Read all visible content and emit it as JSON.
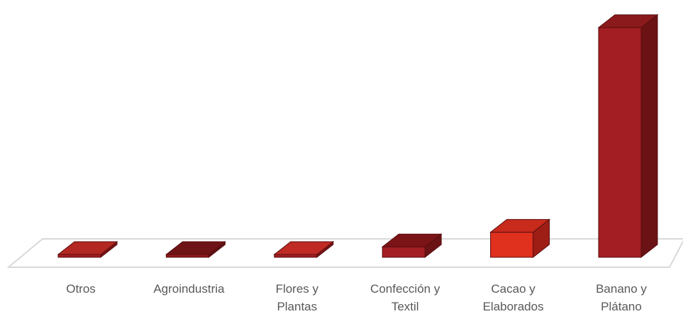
{
  "chart_data": {
    "type": "bar",
    "style": "3d-column",
    "categories": [
      [
        "Otros"
      ],
      [
        "Agroindustria"
      ],
      [
        "Flores y",
        "Plantas"
      ],
      [
        "Confección y",
        "Textil"
      ],
      [
        "Cacao y",
        "Elaborados"
      ],
      [
        "Banano y",
        "Plátano"
      ]
    ],
    "values": [
      0.5,
      0.5,
      1,
      5,
      12,
      110
    ],
    "ylim": [
      0,
      112
    ],
    "grid": false,
    "legend": "none",
    "title": "",
    "xlabel": "",
    "ylabel": "",
    "colors": {
      "front": [
        "#A31E22",
        "#8E1A1C",
        "#A31E22",
        "#A31E22",
        "#E0301E",
        "#A31E22"
      ],
      "top": [
        "#B32822",
        "#6E1416",
        "#C02A24",
        "#7A1416",
        "#C82A1C",
        "#8A1A1C"
      ],
      "side": [
        "#7A1416",
        "#5E1012",
        "#7A1416",
        "#6A1214",
        "#9E1E16",
        "#6A1214"
      ],
      "stroke": "#5A0E10",
      "floor_stroke": "#D9D9D9",
      "label": "#595959"
    }
  }
}
